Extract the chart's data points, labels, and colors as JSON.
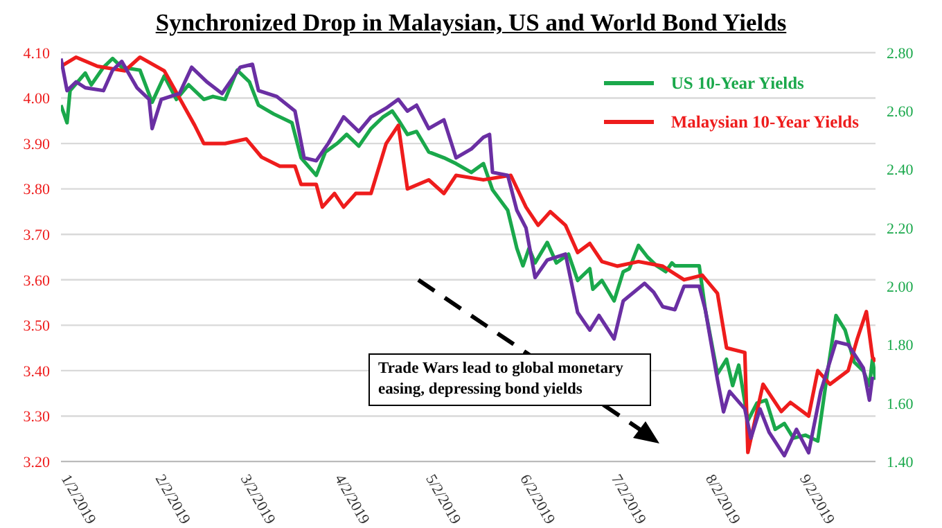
{
  "chart_data": {
    "type": "line",
    "title": "Synchronized Drop in Malaysian, US and World Bond Yields",
    "xlim": [
      "2019-01-02",
      "2019-09-27"
    ],
    "xticks": [
      {
        "value": "2019-01-02",
        "label": "1/2/2019"
      },
      {
        "value": "2019-02-02",
        "label": "2/2/2019"
      },
      {
        "value": "2019-03-02",
        "label": "3/2/2019"
      },
      {
        "value": "2019-04-02",
        "label": "4/2/2019"
      },
      {
        "value": "2019-05-02",
        "label": "5/2/2019"
      },
      {
        "value": "2019-06-02",
        "label": "6/2/2019"
      },
      {
        "value": "2019-07-02",
        "label": "7/2/2019"
      },
      {
        "value": "2019-08-02",
        "label": "8/2/2019"
      },
      {
        "value": "2019-09-02",
        "label": "9/2/2019"
      }
    ],
    "ylim": [
      3.2,
      4.1
    ],
    "yticks": [
      {
        "value": 3.2,
        "label": "3.20"
      },
      {
        "value": 3.3,
        "label": "3.30"
      },
      {
        "value": 3.4,
        "label": "3.40"
      },
      {
        "value": 3.5,
        "label": "3.50"
      },
      {
        "value": 3.6,
        "label": "3.60"
      },
      {
        "value": 3.7,
        "label": "3.70"
      },
      {
        "value": 3.8,
        "label": "3.80"
      },
      {
        "value": 3.9,
        "label": "3.90"
      },
      {
        "value": 4.0,
        "label": "4.00"
      },
      {
        "value": 4.1,
        "label": "4.10"
      }
    ],
    "y2lim": [
      1.4,
      2.8
    ],
    "y2ticks": [
      {
        "value": 1.4,
        "label": "1.40"
      },
      {
        "value": 1.6,
        "label": "1.60"
      },
      {
        "value": 1.8,
        "label": "1.80"
      },
      {
        "value": 2.0,
        "label": "2.00"
      },
      {
        "value": 2.2,
        "label": "2.20"
      },
      {
        "value": 2.4,
        "label": "2.40"
      },
      {
        "value": 2.6,
        "label": "2.60"
      },
      {
        "value": 2.8,
        "label": "2.80"
      }
    ],
    "grid": "y",
    "legend": "top right",
    "marker": "none",
    "line_style": "solid",
    "annotations": [
      "Trade Wars lead to global monetary easing, depressing bond yields"
    ],
    "series": [
      {
        "name": "US 10-Year Yields",
        "color": "#1aa84b",
        "axis": "y2",
        "x": [
          "2019-01-02",
          "2019-01-04",
          "2019-01-05",
          "2019-01-10",
          "2019-01-12",
          "2019-01-16",
          "2019-01-19",
          "2019-01-22",
          "2019-01-28",
          "2019-02-01",
          "2019-02-05",
          "2019-02-09",
          "2019-02-13",
          "2019-02-18",
          "2019-02-21",
          "2019-02-25",
          "2019-03-01",
          "2019-03-05",
          "2019-03-08",
          "2019-03-13",
          "2019-03-19",
          "2019-03-22",
          "2019-03-27",
          "2019-03-30",
          "2019-04-03",
          "2019-04-06",
          "2019-04-10",
          "2019-04-14",
          "2019-04-18",
          "2019-04-21",
          "2019-04-23",
          "2019-04-26",
          "2019-04-29",
          "2019-05-03",
          "2019-05-08",
          "2019-05-12",
          "2019-05-17",
          "2019-05-21",
          "2019-05-24",
          "2019-05-29",
          "2019-06-01",
          "2019-06-03",
          "2019-06-05",
          "2019-06-07",
          "2019-06-11",
          "2019-06-14",
          "2019-06-18",
          "2019-06-21",
          "2019-06-25",
          "2019-06-26",
          "2019-06-29",
          "2019-07-03",
          "2019-07-06",
          "2019-07-08",
          "2019-07-11",
          "2019-07-14",
          "2019-07-17",
          "2019-07-20",
          "2019-07-22",
          "2019-07-23",
          "2019-07-27",
          "2019-07-31",
          "2019-08-02",
          "2019-08-06",
          "2019-08-09",
          "2019-08-11",
          "2019-08-13",
          "2019-08-16",
          "2019-08-19",
          "2019-08-22",
          "2019-08-25",
          "2019-08-28",
          "2019-08-31",
          "2019-09-04",
          "2019-09-08",
          "2019-09-11",
          "2019-09-14",
          "2019-09-17",
          "2019-09-20",
          "2019-09-23",
          "2019-09-25",
          "2019-09-26",
          "2019-09-27"
        ],
        "values": [
          2.62,
          2.56,
          2.67,
          2.73,
          2.69,
          2.75,
          2.78,
          2.75,
          2.74,
          2.63,
          2.72,
          2.64,
          2.69,
          2.64,
          2.65,
          2.64,
          2.74,
          2.7,
          2.62,
          2.59,
          2.56,
          2.44,
          2.38,
          2.46,
          2.49,
          2.52,
          2.48,
          2.54,
          2.58,
          2.6,
          2.57,
          2.52,
          2.53,
          2.46,
          2.44,
          2.42,
          2.39,
          2.42,
          2.33,
          2.26,
          2.13,
          2.07,
          2.13,
          2.08,
          2.15,
          2.08,
          2.11,
          2.02,
          2.06,
          1.99,
          2.02,
          1.95,
          2.05,
          2.06,
          2.14,
          2.1,
          2.07,
          2.05,
          2.08,
          2.07,
          2.07,
          2.07,
          1.92,
          1.7,
          1.75,
          1.66,
          1.73,
          1.54,
          1.6,
          1.61,
          1.51,
          1.53,
          1.48,
          1.49,
          1.47,
          1.69,
          1.9,
          1.85,
          1.74,
          1.71,
          1.66,
          1.75,
          1.68
        ]
      },
      {
        "name": "Malaysian 10-Year Yields",
        "color": "#ee1c1c",
        "x": [
          "2019-01-02",
          "2019-01-07",
          "2019-01-14",
          "2019-01-23",
          "2019-01-28",
          "2019-02-05",
          "2019-02-10",
          "2019-02-15",
          "2019-02-18",
          "2019-02-25",
          "2019-03-04",
          "2019-03-09",
          "2019-03-15",
          "2019-03-20",
          "2019-03-22",
          "2019-03-27",
          "2019-03-29",
          "2019-04-02",
          "2019-04-05",
          "2019-04-09",
          "2019-04-14",
          "2019-04-19",
          "2019-04-23",
          "2019-04-26",
          "2019-05-03",
          "2019-05-08",
          "2019-05-12",
          "2019-05-21",
          "2019-05-30",
          "2019-06-04",
          "2019-06-08",
          "2019-06-12",
          "2019-06-17",
          "2019-06-21",
          "2019-06-25",
          "2019-06-29",
          "2019-07-04",
          "2019-07-11",
          "2019-07-19",
          "2019-07-26",
          "2019-08-01",
          "2019-08-06",
          "2019-08-09",
          "2019-08-15",
          "2019-08-16",
          "2019-08-21",
          "2019-08-27",
          "2019-08-30",
          "2019-09-05",
          "2019-09-08",
          "2019-09-12",
          "2019-09-18",
          "2019-09-21",
          "2019-09-24",
          "2019-09-26",
          "2019-09-27"
        ],
        "values": [
          4.07,
          4.09,
          4.07,
          4.06,
          4.09,
          4.06,
          4.0,
          3.94,
          3.9,
          3.9,
          3.91,
          3.87,
          3.85,
          3.85,
          3.81,
          3.81,
          3.76,
          3.79,
          3.76,
          3.79,
          3.79,
          3.9,
          3.94,
          3.8,
          3.82,
          3.79,
          3.83,
          3.82,
          3.83,
          3.76,
          3.72,
          3.75,
          3.72,
          3.66,
          3.68,
          3.64,
          3.63,
          3.64,
          3.63,
          3.6,
          3.61,
          3.57,
          3.45,
          3.44,
          3.22,
          3.37,
          3.31,
          3.33,
          3.3,
          3.4,
          3.37,
          3.4,
          3.47,
          3.53,
          3.43,
          3.42
        ]
      },
      {
        "color": "#6a2fa3",
        "axis": "y2",
        "x": [
          "2019-01-02",
          "2019-01-04",
          "2019-01-07",
          "2019-01-10",
          "2019-01-16",
          "2019-01-19",
          "2019-01-22",
          "2019-01-27",
          "2019-01-31",
          "2019-02-01",
          "2019-02-04",
          "2019-02-10",
          "2019-02-14",
          "2019-02-19",
          "2019-02-24",
          "2019-03-02",
          "2019-03-06",
          "2019-03-08",
          "2019-03-14",
          "2019-03-20",
          "2019-03-23",
          "2019-03-27",
          "2019-03-31",
          "2019-04-05",
          "2019-04-10",
          "2019-04-14",
          "2019-04-19",
          "2019-04-23",
          "2019-04-26",
          "2019-04-29",
          "2019-05-03",
          "2019-05-08",
          "2019-05-12",
          "2019-05-17",
          "2019-05-21",
          "2019-05-23",
          "2019-05-24",
          "2019-05-29",
          "2019-06-01",
          "2019-06-04",
          "2019-06-07",
          "2019-06-11",
          "2019-06-17",
          "2019-06-21",
          "2019-06-25",
          "2019-06-28",
          "2019-07-03",
          "2019-07-06",
          "2019-07-13",
          "2019-07-16",
          "2019-07-19",
          "2019-07-23",
          "2019-07-26",
          "2019-07-31",
          "2019-08-02",
          "2019-08-06",
          "2019-08-08",
          "2019-08-10",
          "2019-08-15",
          "2019-08-17",
          "2019-08-20",
          "2019-08-23",
          "2019-08-28",
          "2019-09-01",
          "2019-09-05",
          "2019-09-09",
          "2019-09-14",
          "2019-09-18",
          "2019-09-23",
          "2019-09-25",
          "2019-09-26"
        ],
        "values": [
          2.78,
          2.67,
          2.7,
          2.68,
          2.67,
          2.74,
          2.77,
          2.68,
          2.64,
          2.54,
          2.64,
          2.66,
          2.75,
          2.7,
          2.66,
          2.75,
          2.76,
          2.67,
          2.65,
          2.6,
          2.44,
          2.43,
          2.49,
          2.58,
          2.53,
          2.58,
          2.61,
          2.64,
          2.6,
          2.62,
          2.54,
          2.57,
          2.44,
          2.47,
          2.51,
          2.52,
          2.39,
          2.38,
          2.26,
          2.2,
          2.03,
          2.09,
          2.11,
          1.91,
          1.85,
          1.9,
          1.82,
          1.95,
          2.01,
          1.98,
          1.93,
          1.92,
          2.0,
          2.0,
          1.92,
          1.68,
          1.57,
          1.64,
          1.58,
          1.48,
          1.58,
          1.5,
          1.42,
          1.51,
          1.43,
          1.64,
          1.81,
          1.8,
          1.72,
          1.61,
          1.69
        ]
      }
    ]
  }
}
